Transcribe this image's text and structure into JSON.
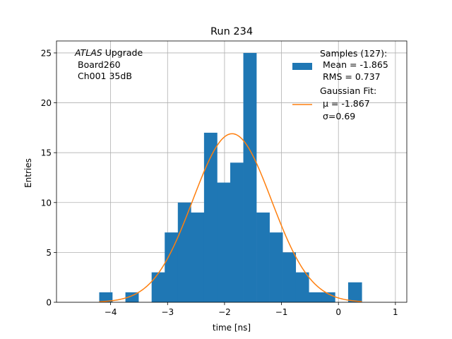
{
  "chart_data": {
    "type": "bar",
    "title": "Run 234",
    "xlabel": "time [ns]",
    "ylabel": "Entries",
    "xlim": [
      -4.95,
      1.2
    ],
    "ylim": [
      0,
      26.2
    ],
    "xticks": [
      -4,
      -3,
      -2,
      -1,
      0,
      1
    ],
    "xtick_labels": [
      "−4",
      "−3",
      "−2",
      "−1",
      "0",
      "1"
    ],
    "yticks": [
      0,
      5,
      10,
      15,
      20,
      25
    ],
    "ytick_labels": [
      "0",
      "5",
      "10",
      "15",
      "20",
      "25"
    ],
    "grid": true,
    "bin_edges": [
      -4.2,
      -3.97,
      -3.74,
      -3.51,
      -3.28,
      -3.05,
      -2.82,
      -2.59,
      -2.36,
      -2.13,
      -1.9,
      -1.67,
      -1.44,
      -1.21,
      -0.98,
      -0.75,
      -0.52,
      -0.29,
      -0.06,
      0.17,
      0.41
    ],
    "counts": [
      1,
      0,
      1,
      0,
      3,
      7,
      10,
      9,
      17,
      12,
      14,
      25,
      9,
      7,
      5,
      3,
      1,
      1,
      0,
      2
    ],
    "fit": {
      "model": "gaussian",
      "mu": -1.867,
      "sigma": 0.69,
      "amplitude": 16.9,
      "x_range": [
        -4.2,
        0.41
      ]
    },
    "series": [
      {
        "name": "Samples",
        "type": "histogram",
        "color": "#1f77b4"
      },
      {
        "name": "Gaussian Fit",
        "type": "line",
        "color": "#ff7f0e"
      }
    ],
    "annotation": {
      "line1_italic": "ATLAS",
      "line1_rest": " Upgrade",
      "line2": "Board260",
      "line3": "Ch001 35dB"
    },
    "legend": {
      "location": "top-right",
      "samples_lines": [
        "Samples (127):",
        "Mean = -1.865",
        "RMS = 0.737"
      ],
      "fit_lines": [
        "Gaussian Fit:",
        "μ = -1.867",
        "σ=0.69"
      ]
    }
  }
}
